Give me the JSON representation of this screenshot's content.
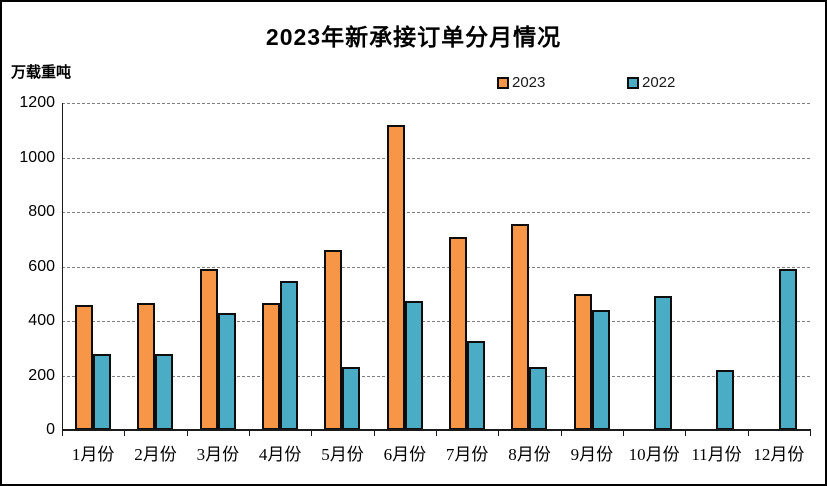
{
  "chart_data": {
    "type": "bar",
    "title": "2023年新承接订单分月情况",
    "ylabel": "万载重吨",
    "categories": [
      "1月份",
      "2月份",
      "3月份",
      "4月份",
      "5月份",
      "6月份",
      "7月份",
      "8月份",
      "9月份",
      "10月份",
      "11月份",
      "12月份"
    ],
    "series": [
      {
        "name": "2023",
        "color": "#F79646",
        "values": [
          460,
          465,
          590,
          465,
          660,
          1120,
          710,
          755,
          500,
          null,
          null,
          null
        ]
      },
      {
        "name": "2022",
        "color": "#4BACC6",
        "values": [
          280,
          280,
          430,
          545,
          230,
          475,
          325,
          230,
          440,
          490,
          220,
          590
        ]
      }
    ],
    "ylim": [
      0,
      1200
    ],
    "ytick_interval": 200,
    "yticks": [
      "1200",
      "1000",
      "800",
      "600",
      "400",
      "200",
      "0"
    ],
    "grid": "horizontal-dashed",
    "legend_position": "top",
    "colors": {
      "background": "#FFFFFF",
      "frame_border": "#000000",
      "bar_border": "#0D0D0D",
      "grid_line": "#7F7F7F",
      "axis_line": "#1A1A1A",
      "text": "#000000"
    }
  }
}
